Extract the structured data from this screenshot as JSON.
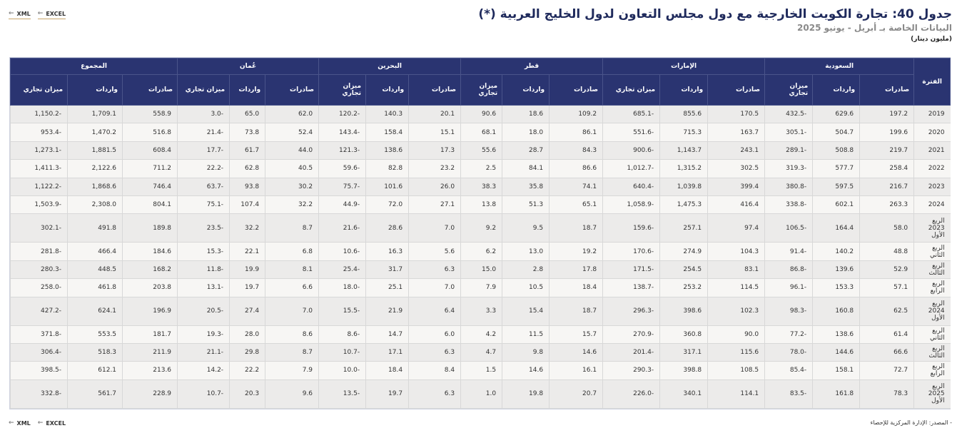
{
  "header": {
    "title": "جدول 40: تجارة الكويت الخارجية مع دول مجلس التعاون لدول الخليج العربية (*)",
    "subtitle": "البيانات الخاصة بـ أبريل - يونيو 2025",
    "unit": "(مليون دينار)"
  },
  "exports": {
    "xml": "XML",
    "excel": "EXCEL"
  },
  "table": {
    "period_header": "الفترة",
    "groups": [
      "السعودية",
      "الإمارات",
      "قطر",
      "البحرين",
      "عُمان",
      "المجموع"
    ],
    "subcols": {
      "exports": "صادرات",
      "imports": "واردات",
      "balance": "ميزان تجاري",
      "balance_wrapped": "ميزان تجاري"
    },
    "rows": [
      {
        "p1": "2019",
        "p2": "",
        "v": [
          "197.2",
          "629.6",
          "-432.5",
          "170.5",
          "855.6",
          "-685.1",
          "109.2",
          "18.6",
          "90.6",
          "20.1",
          "140.3",
          "-120.2",
          "62.0",
          "65.0",
          "-3.0",
          "558.9",
          "1,709.1",
          "-1,150.2"
        ]
      },
      {
        "p1": "2020",
        "p2": "",
        "v": [
          "199.6",
          "504.7",
          "-305.1",
          "163.7",
          "715.3",
          "-551.6",
          "86.1",
          "18.0",
          "68.1",
          "15.1",
          "158.4",
          "-143.4",
          "52.4",
          "73.8",
          "-21.4",
          "516.8",
          "1,470.2",
          "-953.4"
        ]
      },
      {
        "p1": "2021",
        "p2": "",
        "v": [
          "219.7",
          "508.8",
          "-289.1",
          "243.1",
          "1,143.7",
          "-900.6",
          "84.3",
          "28.7",
          "55.6",
          "17.3",
          "138.6",
          "-121.3",
          "44.0",
          "61.7",
          "-17.7",
          "608.4",
          "1,881.5",
          "-1,273.1"
        ]
      },
      {
        "p1": "2022",
        "p2": "",
        "v": [
          "258.4",
          "577.7",
          "-319.3",
          "302.5",
          "1,315.2",
          "-1,012.7",
          "86.6",
          "84.1",
          "2.5",
          "23.2",
          "82.8",
          "-59.6",
          "40.5",
          "62.8",
          "-22.2",
          "711.2",
          "2,122.6",
          "-1,411.3"
        ]
      },
      {
        "p1": "2023",
        "p2": "",
        "v": [
          "216.7",
          "597.5",
          "-380.8",
          "399.4",
          "1,039.8",
          "-640.4",
          "74.1",
          "35.8",
          "38.3",
          "26.0",
          "101.6",
          "-75.7",
          "30.2",
          "93.8",
          "-63.7",
          "746.4",
          "1,868.6",
          "-1,122.2"
        ]
      },
      {
        "p1": "2024",
        "p2": "",
        "v": [
          "263.3",
          "602.1",
          "-338.8",
          "416.4",
          "1,475.3",
          "-1,058.9",
          "65.1",
          "51.3",
          "13.8",
          "27.1",
          "72.0",
          "-44.9",
          "32.2",
          "107.4",
          "-75.1",
          "804.1",
          "2,308.0",
          "-1,503.9"
        ]
      },
      {
        "p1": "الربع 2023",
        "p2": "الأول",
        "v": [
          "58.0",
          "164.4",
          "-106.5",
          "97.4",
          "257.1",
          "-159.6",
          "18.7",
          "9.5",
          "9.2",
          "7.0",
          "28.6",
          "-21.6",
          "8.7",
          "32.2",
          "-23.5",
          "189.8",
          "491.8",
          "-302.1"
        ]
      },
      {
        "p1": "الربع الثاني",
        "p2": "",
        "v": [
          "48.8",
          "140.2",
          "-91.4",
          "104.3",
          "274.9",
          "-170.6",
          "19.2",
          "13.0",
          "6.2",
          "5.6",
          "16.3",
          "-10.6",
          "6.8",
          "22.1",
          "-15.3",
          "184.6",
          "466.4",
          "-281.8"
        ]
      },
      {
        "p1": "الربع الثالث",
        "p2": "",
        "v": [
          "52.9",
          "139.6",
          "-86.8",
          "83.1",
          "254.5",
          "-171.5",
          "17.8",
          "2.8",
          "15.0",
          "6.3",
          "31.7",
          "-25.4",
          "8.1",
          "19.9",
          "-11.8",
          "168.2",
          "448.5",
          "-280.3"
        ]
      },
      {
        "p1": "الربع الرابع",
        "p2": "",
        "v": [
          "57.1",
          "153.3",
          "-96.1",
          "114.5",
          "253.2",
          "-138.7",
          "18.4",
          "10.5",
          "7.9",
          "7.0",
          "25.1",
          "-18.0",
          "6.6",
          "19.7",
          "-13.1",
          "203.8",
          "461.8",
          "-258.0"
        ]
      },
      {
        "p1": "الربع 2024",
        "p2": "الأول",
        "v": [
          "62.5",
          "160.8",
          "-98.3",
          "102.3",
          "398.6",
          "-296.3",
          "18.7",
          "15.4",
          "3.3",
          "6.4",
          "21.9",
          "-15.5",
          "7.0",
          "27.4",
          "-20.5",
          "196.9",
          "624.1",
          "-427.2"
        ]
      },
      {
        "p1": "الربع الثاني",
        "p2": "",
        "v": [
          "61.4",
          "138.6",
          "-77.2",
          "90.0",
          "360.8",
          "-270.9",
          "15.7",
          "11.5",
          "4.2",
          "6.0",
          "14.7",
          "-8.6",
          "8.6",
          "28.0",
          "-19.3",
          "181.7",
          "553.5",
          "-371.8"
        ]
      },
      {
        "p1": "الربع الثالث",
        "p2": "",
        "v": [
          "66.6",
          "144.6",
          "-78.0",
          "115.6",
          "317.1",
          "-201.4",
          "14.6",
          "9.8",
          "4.7",
          "6.3",
          "17.1",
          "-10.7",
          "8.7",
          "29.8",
          "-21.1",
          "211.9",
          "518.3",
          "-306.4"
        ]
      },
      {
        "p1": "الربع الرابع",
        "p2": "",
        "v": [
          "72.7",
          "158.1",
          "-85.4",
          "108.5",
          "398.8",
          "-290.3",
          "16.1",
          "14.6",
          "1.5",
          "8.4",
          "18.4",
          "-10.0",
          "7.9",
          "22.2",
          "-14.2",
          "213.6",
          "612.1",
          "-398.5"
        ]
      },
      {
        "p1": "الربع 2025",
        "p2": "الأول",
        "v": [
          "78.3",
          "161.8",
          "-83.5",
          "114.1",
          "340.1",
          "-226.0",
          "20.7",
          "19.8",
          "1.0",
          "6.3",
          "19.7",
          "-13.5",
          "9.6",
          "20.3",
          "-10.7",
          "228.9",
          "561.7",
          "-332.8"
        ]
      }
    ]
  },
  "footer": {
    "source": "المصدر: الإدارة المركزية للإحصاء",
    "bullet": "-"
  }
}
